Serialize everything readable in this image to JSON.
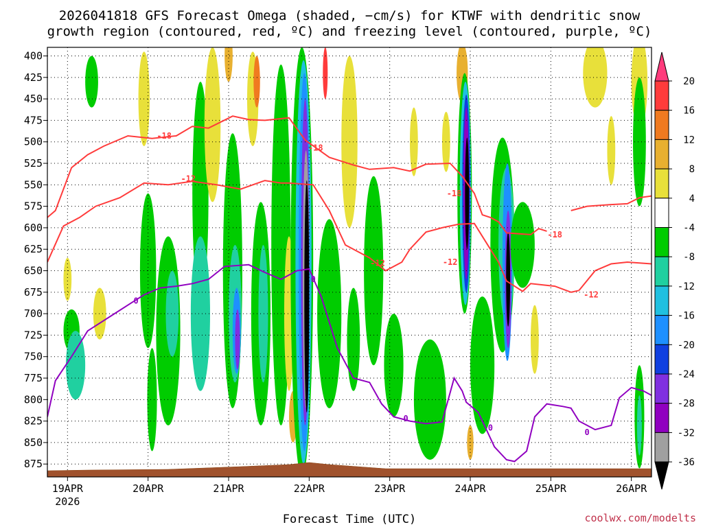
{
  "chart_data": {
    "type": "heatmap",
    "title_line1": "2026041818 GFS Forecast Omega (shaded, −cm/s) for KTWF with dendritic snow",
    "title_line2": "growth region (contoured, red, ºC) and freezing level (contoured, purple, ºC)",
    "xlabel": "Forecast Time (UTC)",
    "credit": "coolwx.com/modelts",
    "x_ticks": [
      {
        "t": 0.25,
        "label": "19APR",
        "sub": "2026"
      },
      {
        "t": 1.25,
        "label": "20APR"
      },
      {
        "t": 2.25,
        "label": "21APR"
      },
      {
        "t": 3.25,
        "label": "22APR"
      },
      {
        "t": 4.25,
        "label": "23APR"
      },
      {
        "t": 5.25,
        "label": "24APR"
      },
      {
        "t": 6.25,
        "label": "25APR"
      },
      {
        "t": 7.25,
        "label": "26APR"
      }
    ],
    "xlim": [
      0,
      7.5
    ],
    "ylim": [
      890,
      390
    ],
    "y_ticks": [
      400,
      425,
      450,
      475,
      500,
      525,
      550,
      575,
      600,
      625,
      650,
      675,
      700,
      725,
      750,
      775,
      800,
      825,
      850,
      875
    ],
    "colorbar": {
      "labels": [
        "20",
        "16",
        "12",
        "8",
        "4",
        "-4",
        "-8",
        "-12",
        "-16",
        "-20",
        "-24",
        "-28",
        "-32",
        "-36"
      ],
      "colors": [
        "#ff3b7c",
        "#ff3b3b",
        "#f07a20",
        "#e8b030",
        "#e8e03a",
        "#ffffff",
        "#00cc00",
        "#20d0a0",
        "#20c0e0",
        "#1e90ff",
        "#1040e0",
        "#8030e0",
        "#9000c0",
        "#a0a0a0",
        "#000000"
      ]
    },
    "shading_blobs": [
      {
        "t": 0.25,
        "p": 660,
        "w": 0.05,
        "h": 50,
        "c": 4
      },
      {
        "t": 0.3,
        "p": 720,
        "w": 0.1,
        "h": 50,
        "c": 6
      },
      {
        "t": 0.35,
        "p": 760,
        "w": 0.12,
        "h": 80,
        "c": 7
      },
      {
        "t": 0.55,
        "p": 430,
        "w": 0.08,
        "h": 60,
        "c": 6
      },
      {
        "t": 0.65,
        "p": 700,
        "w": 0.08,
        "h": 60,
        "c": 4
      },
      {
        "t": 1.2,
        "p": 450,
        "w": 0.07,
        "h": 110,
        "c": 4
      },
      {
        "t": 1.25,
        "p": 650,
        "w": 0.1,
        "h": 180,
        "c": 6
      },
      {
        "t": 1.3,
        "p": 800,
        "w": 0.06,
        "h": 120,
        "c": 6
      },
      {
        "t": 1.5,
        "p": 720,
        "w": 0.15,
        "h": 220,
        "c": 6
      },
      {
        "t": 1.55,
        "p": 700,
        "w": 0.08,
        "h": 100,
        "c": 7
      },
      {
        "t": 1.9,
        "p": 560,
        "w": 0.1,
        "h": 260,
        "c": 6
      },
      {
        "t": 1.9,
        "p": 700,
        "w": 0.12,
        "h": 180,
        "c": 7
      },
      {
        "t": 2.05,
        "p": 480,
        "w": 0.1,
        "h": 180,
        "c": 4
      },
      {
        "t": 2.25,
        "p": 400,
        "w": 0.05,
        "h": 60,
        "c": 3
      },
      {
        "t": 2.3,
        "p": 650,
        "w": 0.12,
        "h": 320,
        "c": 6
      },
      {
        "t": 2.33,
        "p": 700,
        "w": 0.08,
        "h": 160,
        "c": 7
      },
      {
        "t": 2.35,
        "p": 720,
        "w": 0.05,
        "h": 100,
        "c": 9
      },
      {
        "t": 2.36,
        "p": 730,
        "w": 0.03,
        "h": 70,
        "c": 11
      },
      {
        "t": 2.55,
        "p": 450,
        "w": 0.07,
        "h": 110,
        "c": 4
      },
      {
        "t": 2.6,
        "p": 430,
        "w": 0.04,
        "h": 60,
        "c": 2
      },
      {
        "t": 2.65,
        "p": 700,
        "w": 0.12,
        "h": 260,
        "c": 6
      },
      {
        "t": 2.68,
        "p": 700,
        "w": 0.06,
        "h": 160,
        "c": 7
      },
      {
        "t": 2.9,
        "p": 620,
        "w": 0.12,
        "h": 420,
        "c": 6
      },
      {
        "t": 3.0,
        "p": 700,
        "w": 0.06,
        "h": 180,
        "c": 4
      },
      {
        "t": 3.05,
        "p": 820,
        "w": 0.05,
        "h": 60,
        "c": 3
      },
      {
        "t": 3.16,
        "p": 640,
        "w": 0.14,
        "h": 500,
        "c": 6
      },
      {
        "t": 3.18,
        "p": 640,
        "w": 0.1,
        "h": 470,
        "c": 8
      },
      {
        "t": 3.19,
        "p": 640,
        "w": 0.07,
        "h": 440,
        "c": 9
      },
      {
        "t": 3.2,
        "p": 640,
        "w": 0.05,
        "h": 380,
        "c": 11
      },
      {
        "t": 3.21,
        "p": 660,
        "w": 0.04,
        "h": 300,
        "c": 13
      },
      {
        "t": 3.22,
        "p": 680,
        "w": 0.03,
        "h": 270,
        "c": 14
      },
      {
        "t": 3.45,
        "p": 420,
        "w": 0.03,
        "h": 60,
        "c": 1
      },
      {
        "t": 3.5,
        "p": 700,
        "w": 0.15,
        "h": 220,
        "c": 6
      },
      {
        "t": 3.75,
        "p": 500,
        "w": 0.1,
        "h": 200,
        "c": 4
      },
      {
        "t": 3.8,
        "p": 730,
        "w": 0.08,
        "h": 120,
        "c": 6
      },
      {
        "t": 4.05,
        "p": 650,
        "w": 0.12,
        "h": 220,
        "c": 6
      },
      {
        "t": 4.3,
        "p": 760,
        "w": 0.12,
        "h": 120,
        "c": 6
      },
      {
        "t": 4.55,
        "p": 500,
        "w": 0.05,
        "h": 80,
        "c": 4
      },
      {
        "t": 4.75,
        "p": 800,
        "w": 0.2,
        "h": 140,
        "c": 6
      },
      {
        "t": 4.95,
        "p": 500,
        "w": 0.05,
        "h": 70,
        "c": 4
      },
      {
        "t": 5.15,
        "p": 420,
        "w": 0.07,
        "h": 70,
        "c": 3
      },
      {
        "t": 5.18,
        "p": 560,
        "w": 0.09,
        "h": 280,
        "c": 6
      },
      {
        "t": 5.19,
        "p": 560,
        "w": 0.07,
        "h": 260,
        "c": 8
      },
      {
        "t": 5.2,
        "p": 560,
        "w": 0.05,
        "h": 230,
        "c": 10
      },
      {
        "t": 5.2,
        "p": 560,
        "w": 0.035,
        "h": 200,
        "c": 12
      },
      {
        "t": 5.21,
        "p": 560,
        "w": 0.025,
        "h": 130,
        "c": 14
      },
      {
        "t": 5.25,
        "p": 850,
        "w": 0.04,
        "h": 40,
        "c": 3
      },
      {
        "t": 5.4,
        "p": 760,
        "w": 0.15,
        "h": 160,
        "c": 6
      },
      {
        "t": 5.65,
        "p": 620,
        "w": 0.15,
        "h": 250,
        "c": 6
      },
      {
        "t": 5.7,
        "p": 620,
        "w": 0.1,
        "h": 180,
        "c": 7
      },
      {
        "t": 5.71,
        "p": 640,
        "w": 0.06,
        "h": 230,
        "c": 9
      },
      {
        "t": 5.72,
        "p": 660,
        "w": 0.04,
        "h": 160,
        "c": 11
      },
      {
        "t": 5.72,
        "p": 660,
        "w": 0.025,
        "h": 110,
        "c": 14
      },
      {
        "t": 5.9,
        "p": 620,
        "w": 0.15,
        "h": 100,
        "c": 6
      },
      {
        "t": 6.05,
        "p": 730,
        "w": 0.05,
        "h": 80,
        "c": 4
      },
      {
        "t": 6.8,
        "p": 420,
        "w": 0.15,
        "h": 80,
        "c": 4
      },
      {
        "t": 7.0,
        "p": 510,
        "w": 0.05,
        "h": 80,
        "c": 4
      },
      {
        "t": 7.35,
        "p": 430,
        "w": 0.1,
        "h": 110,
        "c": 4
      },
      {
        "t": 7.35,
        "p": 500,
        "w": 0.08,
        "h": 150,
        "c": 6
      },
      {
        "t": 7.35,
        "p": 820,
        "w": 0.06,
        "h": 120,
        "c": 6
      },
      {
        "t": 7.35,
        "p": 830,
        "w": 0.03,
        "h": 70,
        "c": 7
      }
    ],
    "isotherms": [
      {
        "name": "-18",
        "color": "#ff3b3b",
        "label": "-18",
        "points": [
          [
            0,
            588
          ],
          [
            0.1,
            580
          ],
          [
            0.3,
            530
          ],
          [
            0.5,
            515
          ],
          [
            0.7,
            505
          ],
          [
            1.0,
            493
          ],
          [
            1.3,
            496
          ],
          [
            1.6,
            493
          ],
          [
            1.8,
            482
          ],
          [
            2.0,
            484
          ],
          [
            2.3,
            470
          ],
          [
            2.5,
            474
          ],
          [
            2.7,
            475
          ],
          [
            3.0,
            472
          ],
          [
            3.2,
            498
          ],
          [
            3.5,
            518
          ],
          [
            3.8,
            527
          ],
          [
            4.0,
            532
          ],
          [
            4.3,
            530
          ],
          [
            4.5,
            534
          ],
          [
            4.7,
            526
          ],
          [
            5.0,
            525
          ],
          [
            5.15,
            540
          ],
          [
            5.3,
            560
          ],
          [
            5.4,
            585
          ],
          [
            5.5,
            588
          ],
          [
            5.6,
            593
          ],
          [
            5.7,
            606
          ],
          [
            6.0,
            608
          ],
          [
            6.1,
            601
          ],
          [
            6.2,
            604
          ]
        ],
        "labels": [
          {
            "t": 1.45,
            "p": 493
          },
          {
            "t": 3.33,
            "p": 507
          },
          {
            "t": 5.05,
            "p": 560
          },
          {
            "t": 6.3,
            "p": 608
          }
        ]
      },
      {
        "name": "-18b",
        "color": "#ff3b3b",
        "label": "-18",
        "points": [
          [
            6.5,
            580
          ],
          [
            6.7,
            575
          ],
          [
            7.0,
            573
          ],
          [
            7.2,
            572
          ],
          [
            7.35,
            565
          ],
          [
            7.5,
            563
          ]
        ],
        "labels": []
      },
      {
        "name": "-12",
        "color": "#ff3b3b",
        "label": "-12",
        "points": [
          [
            0,
            640
          ],
          [
            0.2,
            598
          ],
          [
            0.4,
            588
          ],
          [
            0.6,
            575
          ],
          [
            0.9,
            565
          ],
          [
            1.2,
            548
          ],
          [
            1.5,
            550
          ],
          [
            1.8,
            546
          ],
          [
            2.1,
            550
          ],
          [
            2.4,
            555
          ],
          [
            2.7,
            545
          ],
          [
            2.9,
            548
          ],
          [
            3.0,
            548
          ],
          [
            3.3,
            550
          ],
          [
            3.5,
            580
          ],
          [
            3.7,
            620
          ],
          [
            4.0,
            635
          ],
          [
            4.2,
            650
          ],
          [
            4.4,
            640
          ],
          [
            4.5,
            625
          ],
          [
            4.7,
            605
          ],
          [
            4.9,
            600
          ],
          [
            5.1,
            596
          ],
          [
            5.3,
            595
          ],
          [
            5.5,
            625
          ],
          [
            5.6,
            640
          ],
          [
            5.7,
            662
          ],
          [
            5.9,
            674
          ],
          [
            6.0,
            665
          ],
          [
            6.3,
            668
          ],
          [
            6.5,
            675
          ],
          [
            6.6,
            673
          ]
        ],
        "labels": [
          {
            "t": 1.75,
            "p": 543
          },
          {
            "t": 4.1,
            "p": 641
          },
          {
            "t": 5.0,
            "p": 640
          },
          {
            "t": 6.75,
            "p": 678
          }
        ]
      },
      {
        "name": "-12b",
        "color": "#ff3b3b",
        "label": "-12",
        "points": [
          [
            6.6,
            673
          ],
          [
            6.8,
            650
          ],
          [
            7.0,
            642
          ],
          [
            7.2,
            640
          ],
          [
            7.5,
            642
          ]
        ],
        "labels": []
      },
      {
        "name": "0",
        "color": "#9000c0",
        "label": "0",
        "points": [
          [
            0,
            820
          ],
          [
            0.1,
            778
          ],
          [
            0.3,
            750
          ],
          [
            0.5,
            720
          ],
          [
            0.8,
            702
          ],
          [
            1.05,
            687
          ],
          [
            1.2,
            678
          ],
          [
            1.4,
            670
          ],
          [
            1.6,
            668
          ],
          [
            1.8,
            665
          ],
          [
            2.0,
            660
          ],
          [
            2.2,
            645
          ],
          [
            2.5,
            643
          ],
          [
            2.7,
            652
          ],
          [
            2.9,
            660
          ],
          [
            3.1,
            650
          ],
          [
            3.25,
            648
          ],
          [
            3.4,
            680
          ],
          [
            3.6,
            740
          ],
          [
            3.8,
            775
          ],
          [
            4.0,
            780
          ],
          [
            4.15,
            805
          ],
          [
            4.3,
            820
          ],
          [
            4.5,
            825
          ],
          [
            4.7,
            828
          ],
          [
            4.9,
            826
          ],
          [
            5.05,
            775
          ],
          [
            5.15,
            790
          ],
          [
            5.2,
            803
          ],
          [
            5.35,
            815
          ],
          [
            5.45,
            835
          ],
          [
            5.55,
            855
          ],
          [
            5.7,
            870
          ],
          [
            5.8,
            872
          ],
          [
            5.95,
            860
          ],
          [
            6.05,
            820
          ],
          [
            6.2,
            805
          ],
          [
            6.4,
            808
          ],
          [
            6.5,
            810
          ],
          [
            6.6,
            825
          ],
          [
            6.8,
            835
          ],
          [
            7.0,
            830
          ],
          [
            7.1,
            798
          ],
          [
            7.25,
            786
          ],
          [
            7.4,
            790
          ],
          [
            7.5,
            795
          ]
        ],
        "labels": [
          {
            "t": 1.1,
            "p": 685
          },
          {
            "t": 3.3,
            "p": 660
          },
          {
            "t": 4.45,
            "p": 822
          },
          {
            "t": 5.5,
            "p": 833
          },
          {
            "t": 6.7,
            "p": 838
          }
        ]
      }
    ]
  }
}
